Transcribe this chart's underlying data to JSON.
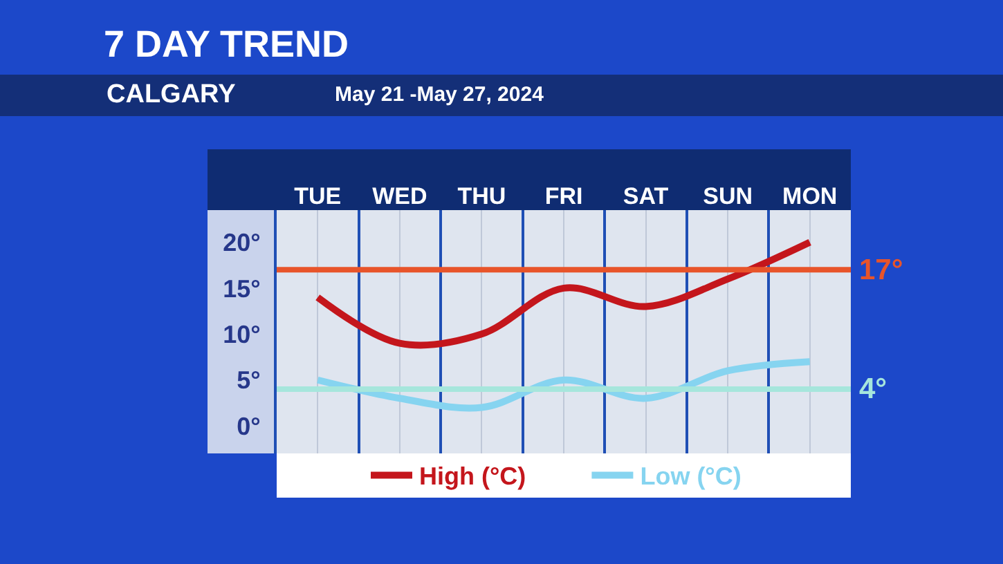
{
  "chart_data": {
    "type": "line",
    "title": "7 DAY TREND",
    "subtitle": "CALGARY",
    "annotations": [
      "May 21 -May 27, 2024"
    ],
    "categories": [
      "TUE",
      "WED",
      "THU",
      "FRI",
      "SAT",
      "SUN",
      "MON"
    ],
    "series": [
      {
        "name": "High (°C)",
        "color": "#c4161c",
        "values": [
          14,
          9,
          10,
          15,
          13,
          16,
          20
        ]
      },
      {
        "name": "Low (°C)",
        "color": "#86d4f0",
        "values": [
          5,
          3,
          2,
          5,
          3,
          6,
          7
        ]
      }
    ],
    "ylim": [
      -3,
      23.5
    ],
    "yticks": [
      {
        "value": 0,
        "label": "0°"
      },
      {
        "value": 5,
        "label": "5°"
      },
      {
        "value": 10,
        "label": "10°"
      },
      {
        "value": 15,
        "label": "15°"
      },
      {
        "value": 20,
        "label": "20°"
      }
    ],
    "ref_lines": [
      {
        "axis": "y",
        "value": 17,
        "label": "17°",
        "color": "#e8542a"
      },
      {
        "axis": "y",
        "value": 4,
        "label": "4°",
        "color": "#a6e6dc"
      }
    ],
    "grid": "x",
    "legend": "bottom"
  }
}
